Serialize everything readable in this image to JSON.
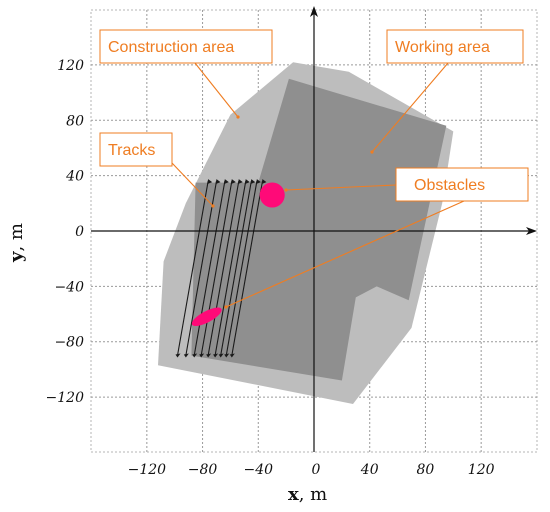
{
  "axes": {
    "x_title_var": "x",
    "x_title_unit": ", m",
    "y_title_var": "y",
    "y_title_unit": ", m",
    "x_ticks": [
      -120,
      -80,
      -40,
      0,
      40,
      80,
      120
    ],
    "y_ticks": [
      120,
      80,
      40,
      0,
      -40,
      -80,
      -120
    ],
    "x_tick_labels": [
      "−120",
      "−80",
      "−40",
      "0",
      "40",
      "80",
      "120"
    ],
    "y_tick_labels": [
      "120",
      "80",
      "40",
      "0",
      "−40",
      "−80",
      "−120"
    ],
    "xlim": [
      -160,
      160
    ],
    "ylim": [
      -160,
      160
    ],
    "grid": true
  },
  "callouts": {
    "construction_area": "Construction area",
    "working_area": "Working area",
    "tracks": "Tracks",
    "obstacles": "Obstacles"
  },
  "colors": {
    "construction_area": "#bdbdbd",
    "working_area": "#8f8f8f",
    "obstacle": "#ff0a78",
    "callout": "#ef7d22",
    "tracks": "#1a1a1a",
    "grid": "#9a9a9a"
  },
  "regions": {
    "construction_area": [
      [
        -60,
        84
      ],
      [
        -15,
        122
      ],
      [
        25,
        115
      ],
      [
        100,
        72
      ],
      [
        92,
        20
      ],
      [
        70,
        -70
      ],
      [
        28,
        -125
      ],
      [
        -112,
        -97
      ],
      [
        -108,
        -22
      ],
      [
        -92,
        20
      ]
    ],
    "working_area": [
      [
        -18,
        110
      ],
      [
        95,
        76
      ],
      [
        68,
        -50
      ],
      [
        45,
        -40
      ],
      [
        30,
        -48
      ],
      [
        20,
        -108
      ],
      [
        -88,
        -90
      ],
      [
        -85,
        35
      ],
      [
        -40,
        35
      ]
    ]
  },
  "obstacles": [
    {
      "shape": "circle",
      "cx": -30,
      "cy": 26,
      "r": 9
    },
    {
      "shape": "ellipse",
      "cx": -77,
      "cy": -62,
      "rx": 12,
      "ry": 4,
      "angle_deg": -28
    }
  ],
  "tracks": {
    "count": 9,
    "bottom_x": [
      -98,
      -92,
      -86,
      -81,
      -76,
      -71,
      -67,
      -63,
      -59
    ],
    "bottom_y": -90,
    "top_offset_x": 22,
    "top_y": 36
  }
}
